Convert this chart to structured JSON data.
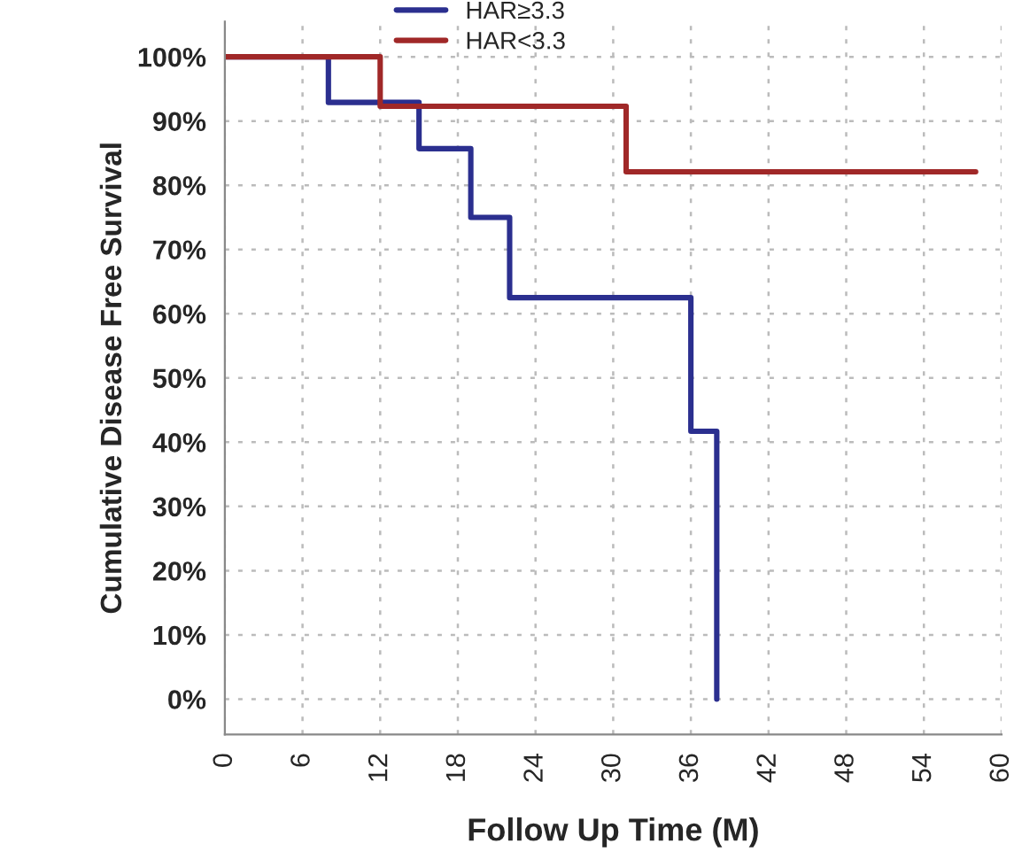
{
  "chart_data": {
    "type": "step",
    "xlabel": "Follow Up Time (M)",
    "ylabel": "Cumulative Disease Free Survival",
    "series": [
      {
        "name": "HAR≥3.3",
        "color": "#2b2f8f",
        "x": [
          0,
          8,
          15,
          19,
          22,
          36,
          38
        ],
        "values": [
          100,
          92.9,
          85.7,
          75,
          62.5,
          41.7,
          0
        ]
      },
      {
        "name": "HAR<3.3",
        "color": "#a02828",
        "x": [
          0,
          12,
          31,
          58
        ],
        "values": [
          100,
          92.3,
          82.1,
          82.1
        ]
      }
    ],
    "xlim": [
      0,
      60
    ],
    "xticks": [
      0,
      6,
      12,
      18,
      24,
      30,
      36,
      42,
      48,
      54,
      60
    ],
    "ylim": [
      -5.5,
      105.5
    ],
    "yticks": [
      {
        "value": 0,
        "label": "0%"
      },
      {
        "value": 10,
        "label": "10%"
      },
      {
        "value": 20,
        "label": "20%"
      },
      {
        "value": 30,
        "label": "30%"
      },
      {
        "value": 40,
        "label": "40%"
      },
      {
        "value": 50,
        "label": "50%"
      },
      {
        "value": 60,
        "label": "60%"
      },
      {
        "value": 70,
        "label": "70%"
      },
      {
        "value": 80,
        "label": "80%"
      },
      {
        "value": 90,
        "label": "90%"
      },
      {
        "value": 100,
        "label": "100%"
      }
    ],
    "grid": true,
    "legend": "top",
    "line_style": "solid",
    "marker": "none"
  }
}
